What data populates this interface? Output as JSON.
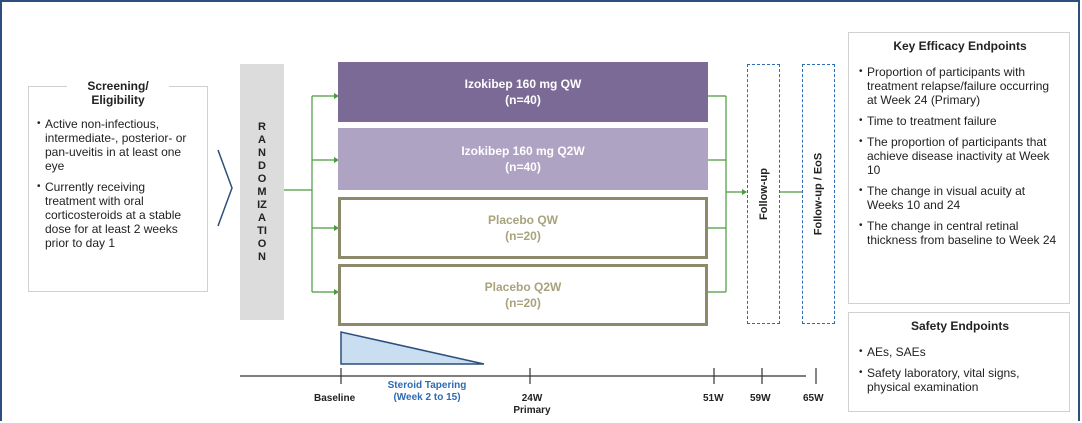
{
  "screening": {
    "title_line1": "Screening/",
    "title_line2": "Eligibility",
    "bullets": [
      "Active non-infectious, intermediate-, posterior- or pan-uveitis in at least one eye",
      "Currently receiving treatment with oral corticosteroids at a stable dose for at least 2 weeks prior to day 1"
    ]
  },
  "randomization": {
    "label": "RANDOMIZATION"
  },
  "arms": [
    {
      "name": "Izokibep 160 mg QW",
      "n": "(n=40)",
      "color": "#7c6a96"
    },
    {
      "name": "Izokibep 160 mg Q2W",
      "n": "(n=40)",
      "color": "#aea3c3"
    },
    {
      "name": "Placebo QW",
      "n": "(n=20)",
      "color": "#8c8a6a"
    },
    {
      "name": "Placebo Q2W",
      "n": "(n=20)",
      "color": "#8c8a6a"
    }
  ],
  "followup1": "Follow-up",
  "followup2": "Follow-up / EoS",
  "efficacy": {
    "title": "Key Efficacy Endpoints",
    "bullets": [
      "Proportion of participants with treatment relapse/failure occurring at Week 24 (Primary)",
      "Time to treatment failure",
      "The proportion of participants that achieve disease inactivity at Week 10",
      "The change in visual acuity at Weeks 10 and 24",
      "The change in central retinal thickness from baseline to Week 24"
    ]
  },
  "safety": {
    "title": "Safety Endpoints",
    "bullets": [
      "AEs, SAEs",
      "Safety laboratory, vital signs, physical examination"
    ]
  },
  "timeline": {
    "baseline": "Baseline",
    "taper_line1": "Steroid Tapering",
    "taper_line2": "(Week 2 to 15)",
    "w24": "24W",
    "primary": "Primary",
    "w51": "51W",
    "w59": "59W",
    "w65": "65W"
  }
}
